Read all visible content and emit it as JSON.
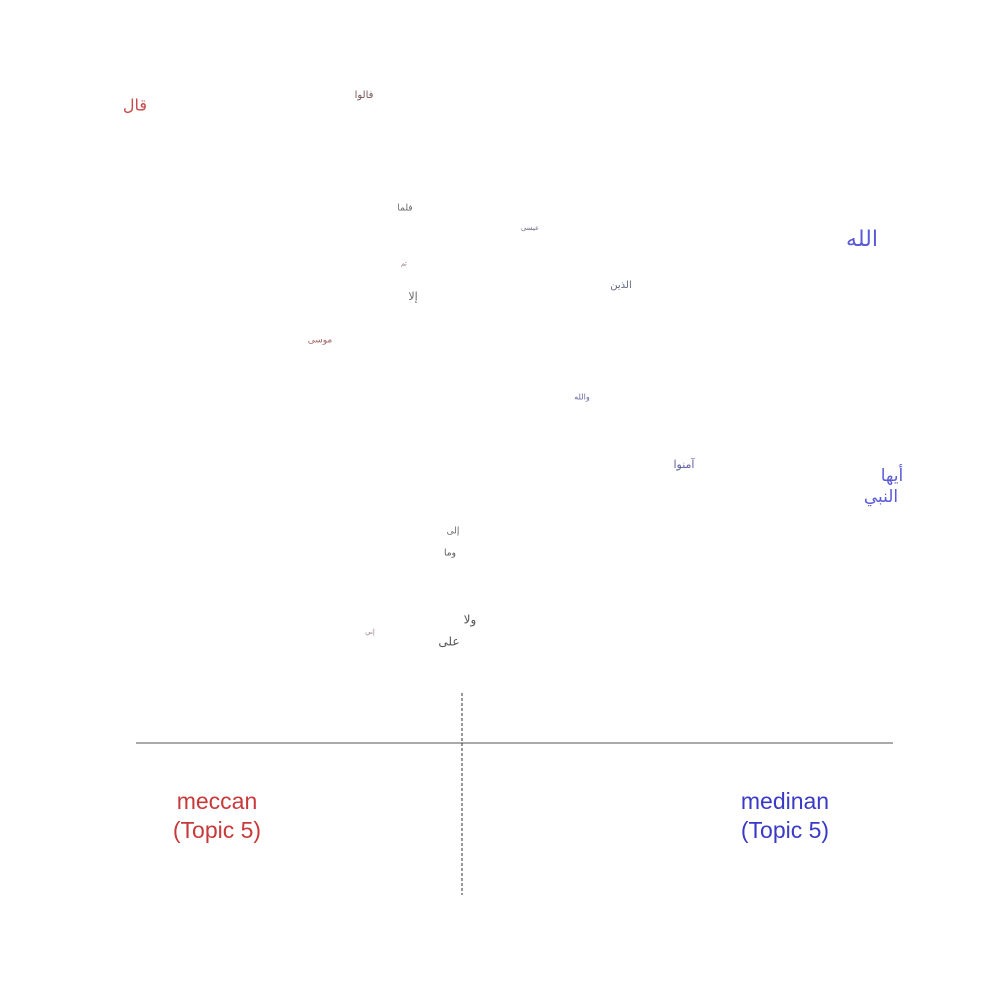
{
  "words": [
    "قال",
    "فالوا",
    "فلما",
    "عيسى",
    "ثم",
    "إلا",
    "الذين",
    "الله",
    "موسى",
    "والله",
    "آمنوا",
    "أيها",
    "النبي",
    "إلى",
    "وما",
    "ولا",
    "إني",
    "على"
  ],
  "left_label": [
    "meccan",
    "(Topic 5)"
  ],
  "right_label": [
    "medinan",
    "(Topic 5)"
  ]
}
